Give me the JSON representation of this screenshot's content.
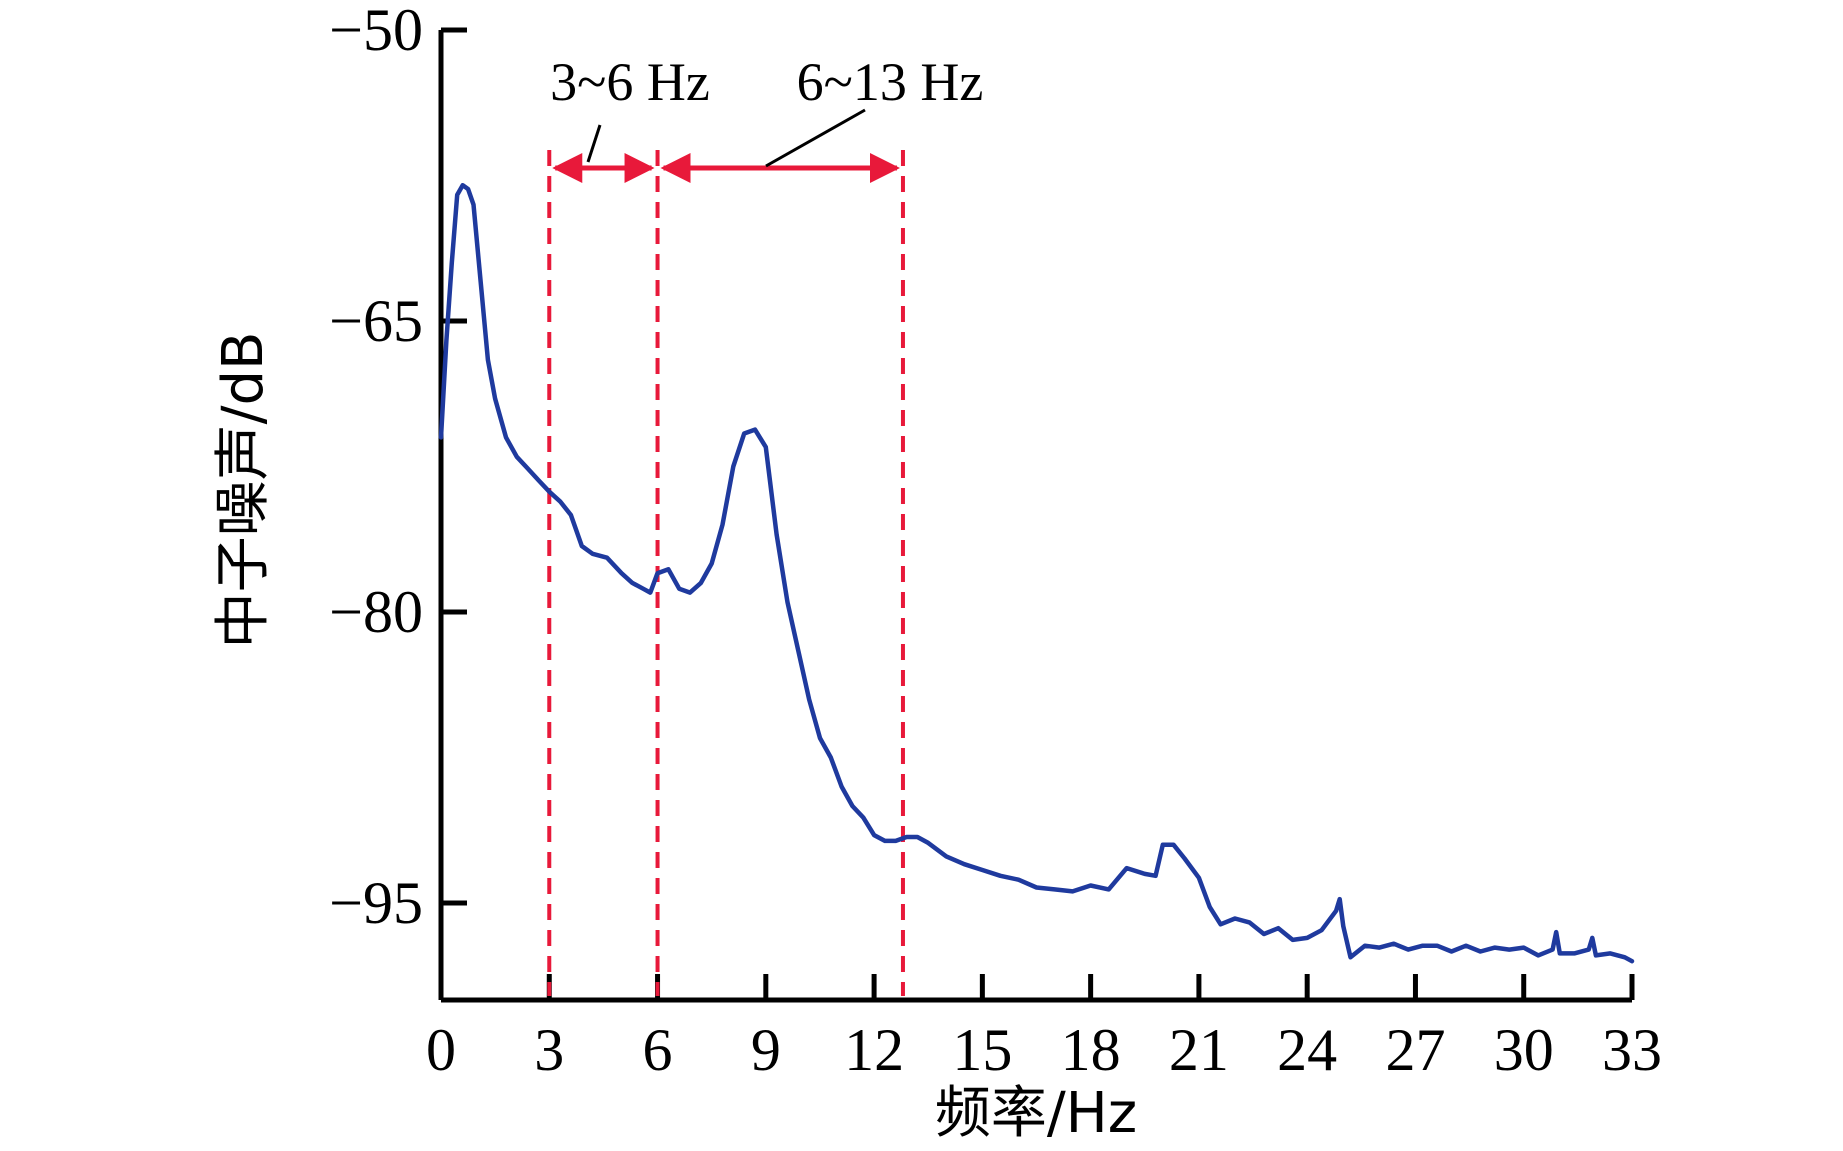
{
  "chart_data": {
    "type": "line",
    "title": "",
    "xlabel": "频率/Hz",
    "ylabel": "中子噪声/dB",
    "xlim": [
      0,
      33
    ],
    "ylim": [
      -100,
      -50
    ],
    "x_ticks": [
      0,
      3,
      6,
      9,
      12,
      15,
      18,
      21,
      24,
      27,
      30,
      33
    ],
    "y_ticks": [
      -50,
      -65,
      -80,
      -95
    ],
    "grid": false,
    "legend": "none",
    "colors": {
      "series": "#1f3a9e",
      "bands": "#e8193a",
      "axis": "#000000"
    },
    "series": [
      {
        "x": [
          0.0,
          0.15,
          0.3,
          0.45,
          0.6,
          0.75,
          0.9,
          1.1,
          1.3,
          1.5,
          1.8,
          2.1,
          2.4,
          2.7,
          3.0,
          3.3,
          3.6,
          3.9,
          4.2,
          4.6,
          5.0,
          5.3,
          5.6,
          5.8,
          6.0,
          6.3,
          6.6,
          6.9,
          7.2,
          7.5,
          7.8,
          8.1,
          8.4,
          8.7,
          9.0,
          9.3,
          9.6,
          9.9,
          10.2,
          10.5,
          10.8,
          11.1,
          11.4,
          11.7,
          12.0,
          12.3,
          12.6,
          12.9,
          13.2,
          13.5,
          14.0,
          14.5,
          15.0,
          15.5,
          16.0,
          16.5,
          17.0,
          17.5,
          18.0,
          18.5,
          19.0,
          19.5,
          19.8,
          20.0,
          20.3,
          20.6,
          21.0,
          21.3,
          21.6,
          22.0,
          22.4,
          22.8,
          23.2,
          23.6,
          24.0,
          24.4,
          24.8,
          24.9,
          25.0,
          25.2,
          25.6,
          26.0,
          26.4,
          26.8,
          27.2,
          27.6,
          28.0,
          28.4,
          28.8,
          29.2,
          29.6,
          30.0,
          30.4,
          30.8,
          30.9,
          31.0,
          31.4,
          31.8,
          31.9,
          32.0,
          32.4,
          32.8,
          33.0
        ],
        "y": [
          -71,
          -66,
          -62,
          -58.5,
          -58,
          -58.2,
          -59,
          -63,
          -67,
          -69,
          -71,
          -72,
          -72.6,
          -73.2,
          -73.8,
          -74.3,
          -75,
          -76.6,
          -77,
          -77.2,
          -78,
          -78.5,
          -78.8,
          -79,
          -78,
          -77.8,
          -78.8,
          -79,
          -78.5,
          -77.5,
          -75.5,
          -72.5,
          -70.8,
          -70.6,
          -71.5,
          -76,
          -79.5,
          -82,
          -84.5,
          -86.5,
          -87.5,
          -89,
          -90,
          -90.6,
          -91.5,
          -91.8,
          -91.8,
          -91.6,
          -91.6,
          -91.9,
          -92.6,
          -93,
          -93.3,
          -93.6,
          -93.8,
          -94.2,
          -94.3,
          -94.4,
          -94.1,
          -94.3,
          -93.2,
          -93.5,
          -93.6,
          -92,
          -92,
          -92.7,
          -93.7,
          -95.2,
          -96.1,
          -95.8,
          -96,
          -96.6,
          -96.3,
          -96.9,
          -96.8,
          -96.4,
          -95.4,
          -94.8,
          -96.2,
          -97.8,
          -97.2,
          -97.3,
          -97.1,
          -97.4,
          -97.2,
          -97.2,
          -97.5,
          -97.2,
          -97.5,
          -97.3,
          -97.4,
          -97.3,
          -97.7,
          -97.4,
          -96.5,
          -97.6,
          -97.6,
          -97.4,
          -96.8,
          -97.7,
          -97.6,
          -97.8,
          -98.0
        ]
      }
    ],
    "bands": [
      {
        "label": "3~6 Hz",
        "x0": 3,
        "x1": 6
      },
      {
        "label": "6~13 Hz",
        "x0": 6,
        "x1": 12.8
      }
    ]
  }
}
